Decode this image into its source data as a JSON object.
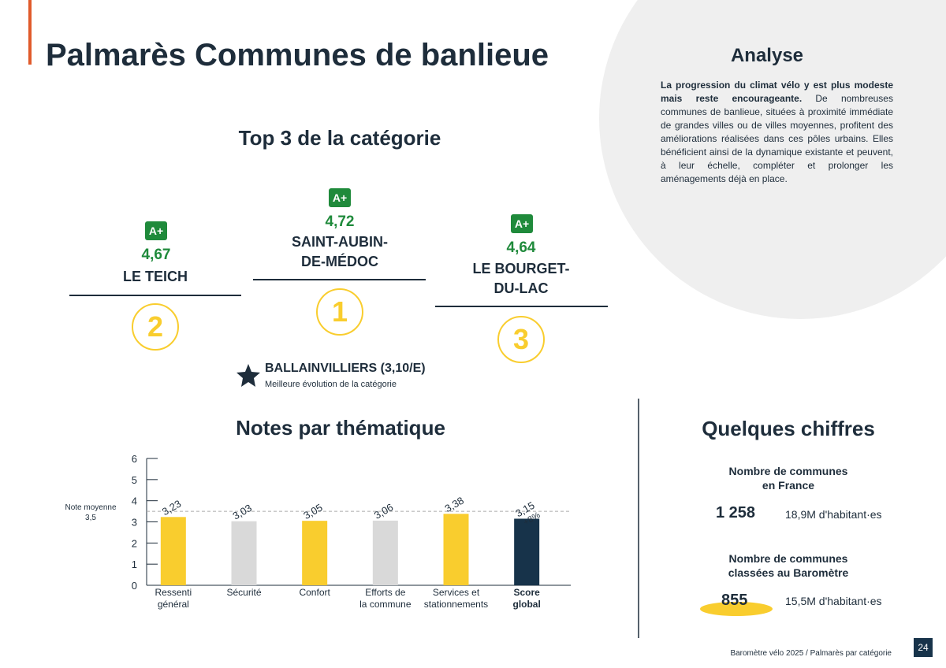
{
  "header": {
    "title": "Palmarès Communes de banlieue"
  },
  "top3": {
    "title": "Top 3 de la catégorie",
    "items": [
      {
        "rank": "2",
        "grade": "A+",
        "score": "4,67",
        "name": "LE TEICH"
      },
      {
        "rank": "1",
        "grade": "A+",
        "score": "4,72",
        "name": "SAINT-AUBIN-\nDE-MÉDOC"
      },
      {
        "rank": "3",
        "grade": "A+",
        "score": "4,64",
        "name": "LE BOURGET-\nDU-LAC"
      }
    ],
    "best_progress": {
      "name": "BALLAINVILLIERS (3,10/E)",
      "caption": "Meilleure évolution de la catégorie"
    }
  },
  "analysis": {
    "title": "Analyse",
    "lead": "La progression du climat vélo y est plus modeste mais reste encourageante.",
    "text": "De nombreuses communes de banlieue, situées à proximité immédiate de grandes villes ou de villes moyennes, profitent des améliorations réalisées dans ces pôles urbains. Elles bénéficient ainsi de la dynamique existante et peuvent, à leur échelle, compléter et prolonger les aménagements déjà en place."
  },
  "chart_data": {
    "type": "bar",
    "title": "Notes par thématique",
    "categories": [
      "Ressenti\ngénéral",
      "Sécurité",
      "Confort",
      "Efforts de\nla commune",
      "Services et\nstationnements",
      "Score\nglobal"
    ],
    "values": [
      3.23,
      3.03,
      3.05,
      3.06,
      3.38,
      3.15
    ],
    "value_labels": [
      "3,23",
      "3,03",
      "3,05",
      "3,06",
      "3,38",
      "3,15"
    ],
    "colors": [
      "#f9cd2e",
      "#d9d9d9",
      "#f9cd2e",
      "#d9d9d9",
      "#f9cd2e",
      "#17334a"
    ],
    "change_label": "+8%",
    "reference": {
      "value": 3.5,
      "label": "Note moyenne\n3,5"
    },
    "ylim": [
      0,
      6
    ],
    "yticks": [
      0,
      1,
      2,
      3,
      4,
      5,
      6
    ]
  },
  "figures": {
    "title": "Quelques chiffres",
    "blocks": [
      {
        "label": "Nombre de communes\nen France",
        "number": "1 258",
        "population": "18,9M d'habitant·es"
      },
      {
        "label": "Nombre de communes\nclassées au Baromètre",
        "number": "855",
        "population": "15,5M d'habitant·es"
      }
    ]
  },
  "footer": {
    "source": "Baromètre vélo 2025 / Palmarès par catégorie",
    "page": "24"
  }
}
